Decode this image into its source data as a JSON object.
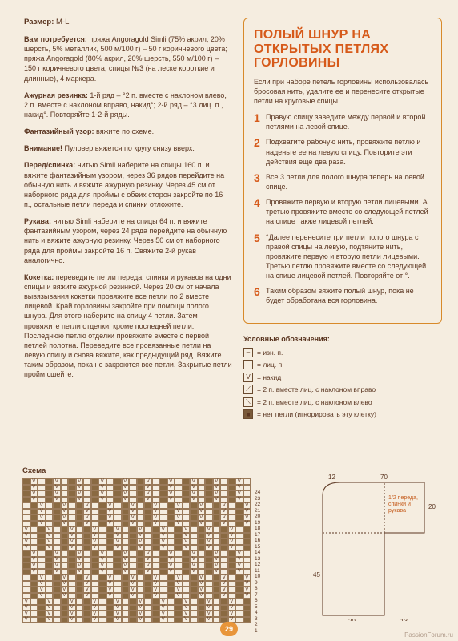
{
  "size": {
    "label": "Размер:",
    "value": "M-L"
  },
  "materials": {
    "label": "Вам потребуется:",
    "text": "пряжа Angoragold Simli (75% акрил, 20% шерсть, 5% металлик, 500 м/100 г) – 50 г коричневого цвета; пряжа Angoragold (80% акрил, 20% шерсть, 550 м/100 г) – 150 г коричневого цвета, спицы №3 (на леске короткие и длинные), 4 маркера."
  },
  "patterns": [
    {
      "label": "Ажурная резинка:",
      "text": "1-й ряд – °2 п. вместе с наклоном влево, 2 п. вместе с наклоном вправо, накид°; 2-й ряд – °3 лиц. п., накид°. Повторяйте 1-2-й ряды."
    },
    {
      "label": "Фантазийный узор:",
      "text": "вяжите по схеме."
    },
    {
      "label": "Внимание!",
      "text": "Пуловер вяжется по кругу снизу вверх."
    },
    {
      "label": "Перед/спинка:",
      "text": "нитью Simli наберите на спицы 160 п. и вяжите фантазийным узором, через 36 рядов перейдите на обычную нить и вяжите ажурную резинку. Через 45 см от наборного ряда для проймы с обеих сторон закройте по 16 п., остальные петли переда и спинки отложите."
    },
    {
      "label": "Рукава:",
      "text": "нитью Simli наберите на спицы 64 п. и вяжите фантазийным узором, через 24 ряда перейдите на обычную нить и вяжите ажурную резинку. Через 50 см от наборного ряда для проймы закройте 16 п. Свяжите 2-й рукав аналогично."
    },
    {
      "label": "Кокетка:",
      "text": "переведите петли переда, спинки и рукавов на одни спицы и вяжите ажурной резинкой. Через 20 см от начала вывязывания кокетки провяжите все петли по 2 вместе лицевой. Край горловины закройте при помощи полого шнура. Для этого наберите на спицу 4 петли. Затем провяжите петли отделки, кроме последней петли. Последнюю петлю отделки провяжите вместе с первой петлей полотна. Переведите все провязанные петли на левую спицу и снова вяжите, как предыдущий ряд. Вяжите таким образом, пока не закроются все петли. Закрытые петли пройм сшейте."
    }
  ],
  "accent": {
    "title": "ПОЛЫЙ ШНУР НА ОТКРЫТЫХ ПЕТЛЯХ ГОРЛОВИНЫ",
    "intro": "Если при наборе петель горловины использовалась бросовая нить, удалите ее и перенесите открытые петли на круговые спицы.",
    "steps": [
      "Правую спицу заведите между первой и второй петлями на левой спице.",
      "Подхватите рабочую нить, провяжите петлю и наденьте ее на левую спицу. Повторите эти действия еще два раза.",
      "Все 3 петли для полого шнура теперь на левой спице.",
      "Провяжите первую и вторую петли лицевыми. А третью провяжите вместе со следующей петлей на спице также лицевой петлей.",
      "°Далее перенесите три петли полого шнура с правой спицы на левую, подтяните нить, провяжите первую и вторую петли лицевыми. Третью петлю провяжите вместе со следующей на спице лицевой петлей. Повторяйте от °.",
      "Таким образом вяжите полый шнур, пока не будет обработана вся горловина."
    ]
  },
  "legend": {
    "title": "Условные обозначения:",
    "items": [
      {
        "sym": "–",
        "text": "= изн. п."
      },
      {
        "sym": "",
        "text": "= лиц. п."
      },
      {
        "sym": "V",
        "text": "= накид"
      },
      {
        "sym": "⟋",
        "text": "= 2 п. вместе лиц. с наклоном вправо"
      },
      {
        "sym": "⟍",
        "text": "= 2 п. вместе лиц. с наклоном влево"
      },
      {
        "sym": "■",
        "text": "= нет петли (игнорировать эту клетку)",
        "filled": true
      }
    ]
  },
  "schema": {
    "label": "Схема",
    "rows": 24,
    "cols": 30,
    "row_numbers": [
      "24",
      "23",
      "22",
      "21",
      "20",
      "19",
      "18",
      "17",
      "16",
      "15",
      "14",
      "13",
      "12",
      "11",
      "10",
      "9",
      "8",
      "7",
      "6",
      "5",
      "4",
      "3",
      "2",
      "1"
    ]
  },
  "diagram": {
    "meas": {
      "top_left": "12",
      "top_right": "70",
      "side_top": "20",
      "bottom_left": "45",
      "bottom_r1": "20",
      "bottom_r2": "13"
    },
    "inner_label": "1/2 переда,\nспинки\nи рукава"
  },
  "page_number": "29",
  "watermark": "PassionForum.ru"
}
